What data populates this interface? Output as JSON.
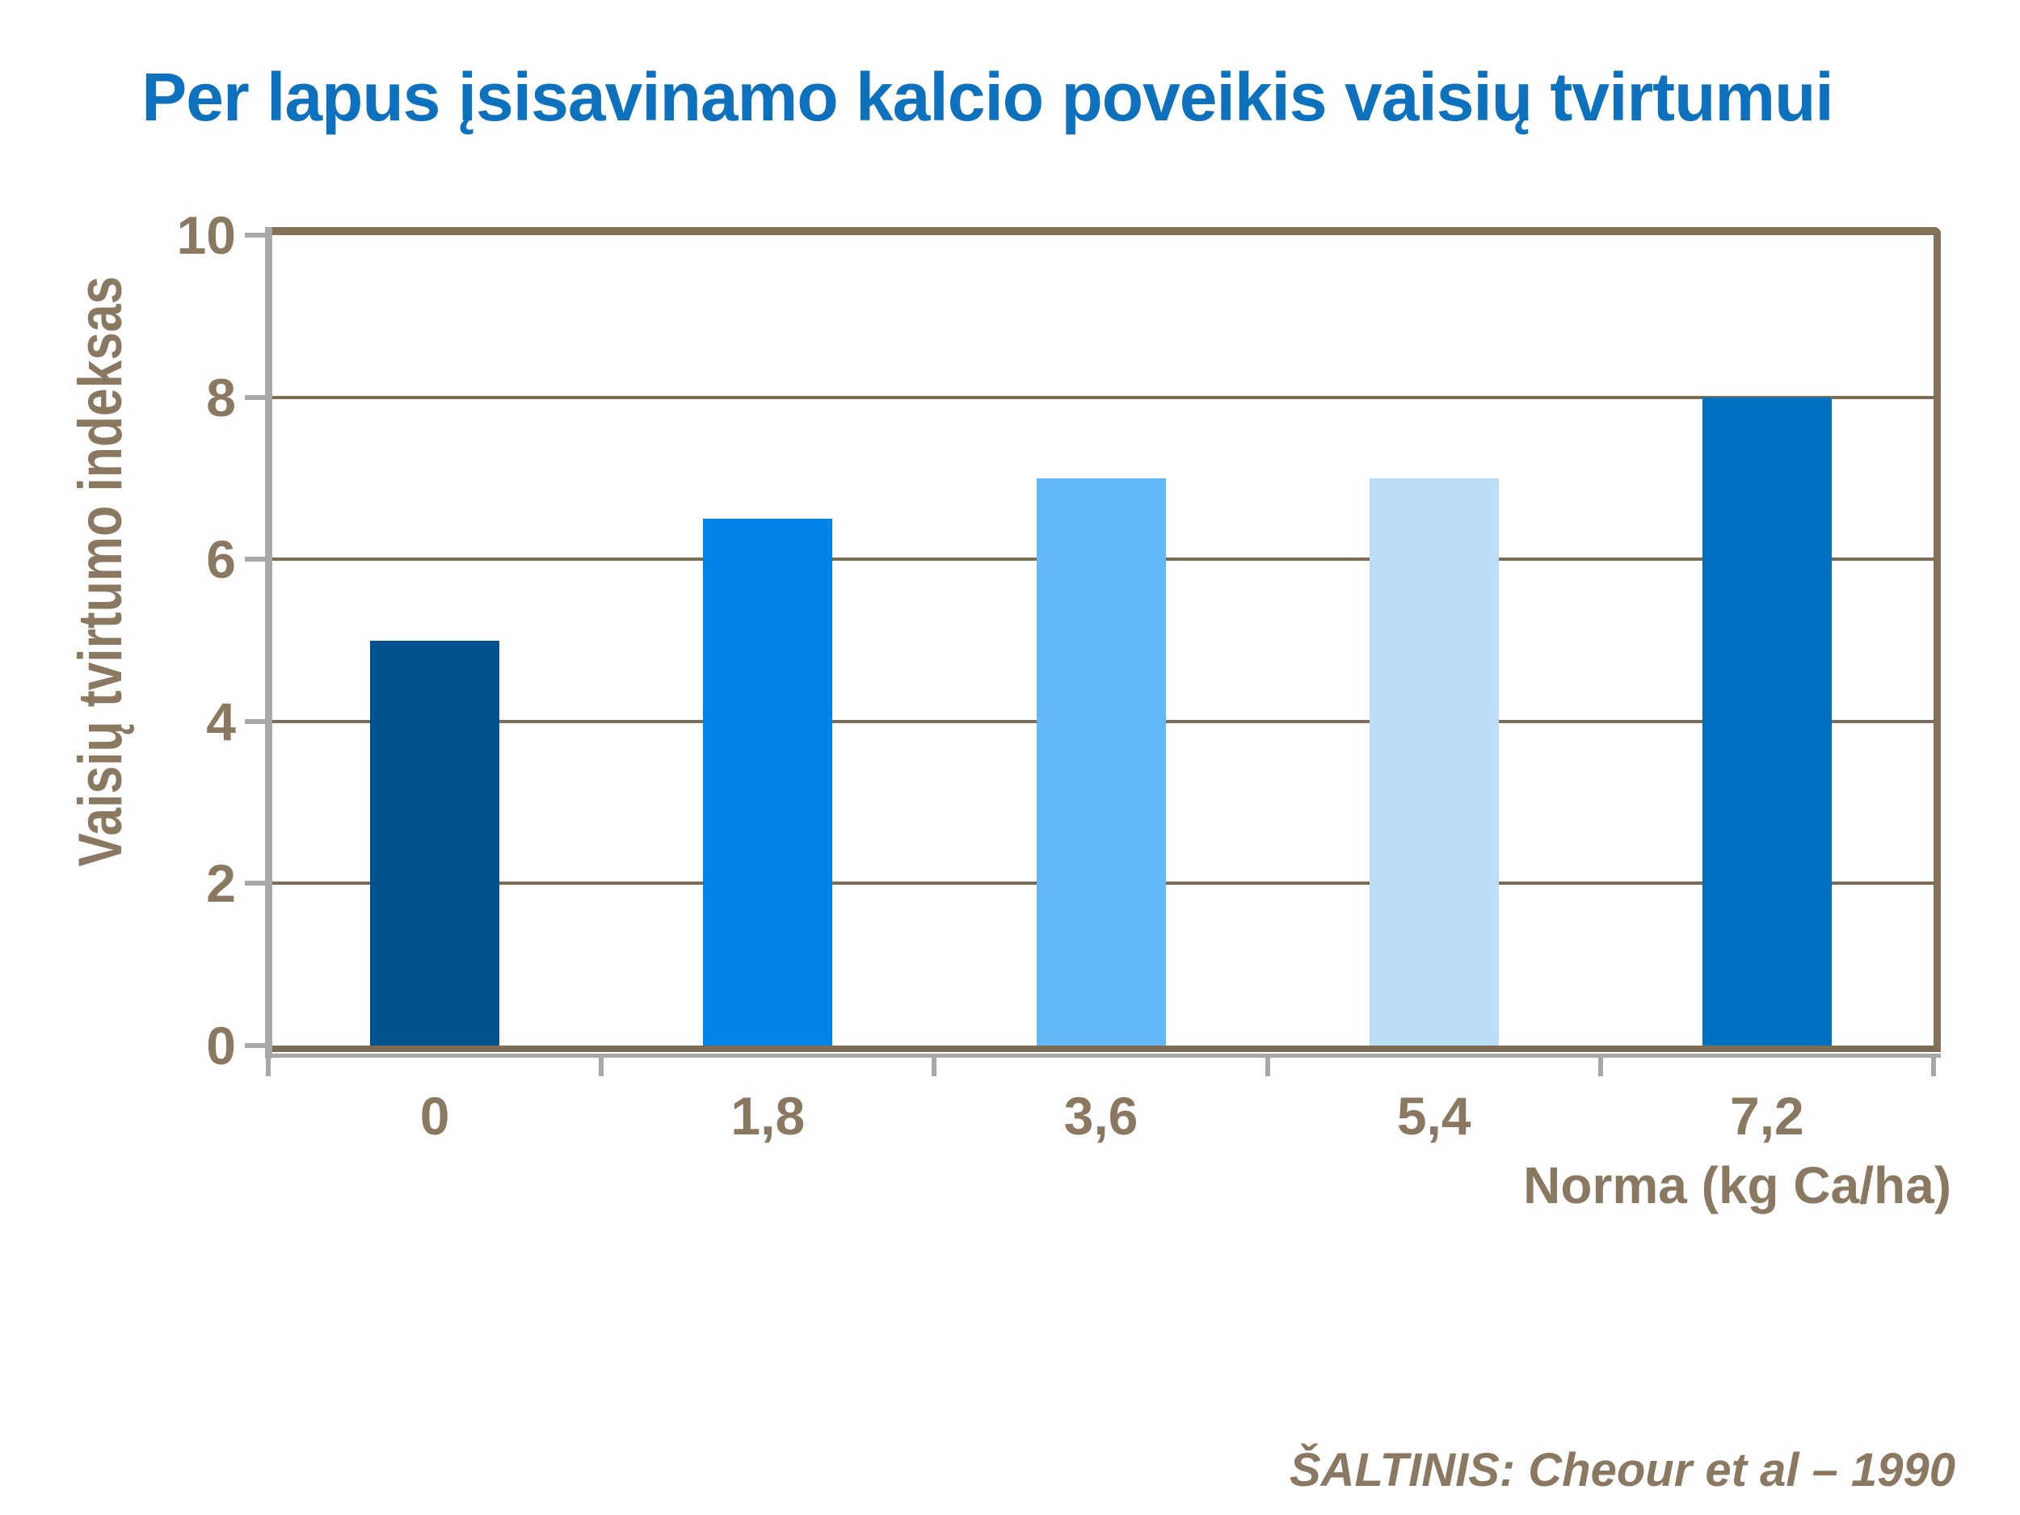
{
  "chart_data": {
    "type": "bar",
    "title": "Per lapus įsisavinamo kalcio poveikis vaisių tvirtumui",
    "categories": [
      "0",
      "1,8",
      "3,6",
      "5,4",
      "7,2"
    ],
    "values": [
      5,
      6.5,
      7,
      7,
      8
    ],
    "bar_colors": [
      "#02538D",
      "#0082E6",
      "#63B9F7",
      "#BCDDF7",
      "#0070C0"
    ],
    "xlabel": "Norma (kg Ca/ha)",
    "ylabel": "Vaisių tvirtumo indeksas",
    "ylim": [
      0,
      10
    ],
    "ytick_step": 2,
    "yticks": [
      "0",
      "2",
      "4",
      "6",
      "8",
      "10"
    ],
    "grid": "horizontal",
    "legend": "none",
    "source": "ŠALTINIS: Cheour et al – 1990"
  },
  "colors": {
    "background": "#FFFFFF",
    "title_text": "#0E71BE",
    "axis_text": "#8A7861",
    "gridline": "#7C6C54",
    "frame": "#847256",
    "axis_line_gray": "#A8A8A8"
  }
}
